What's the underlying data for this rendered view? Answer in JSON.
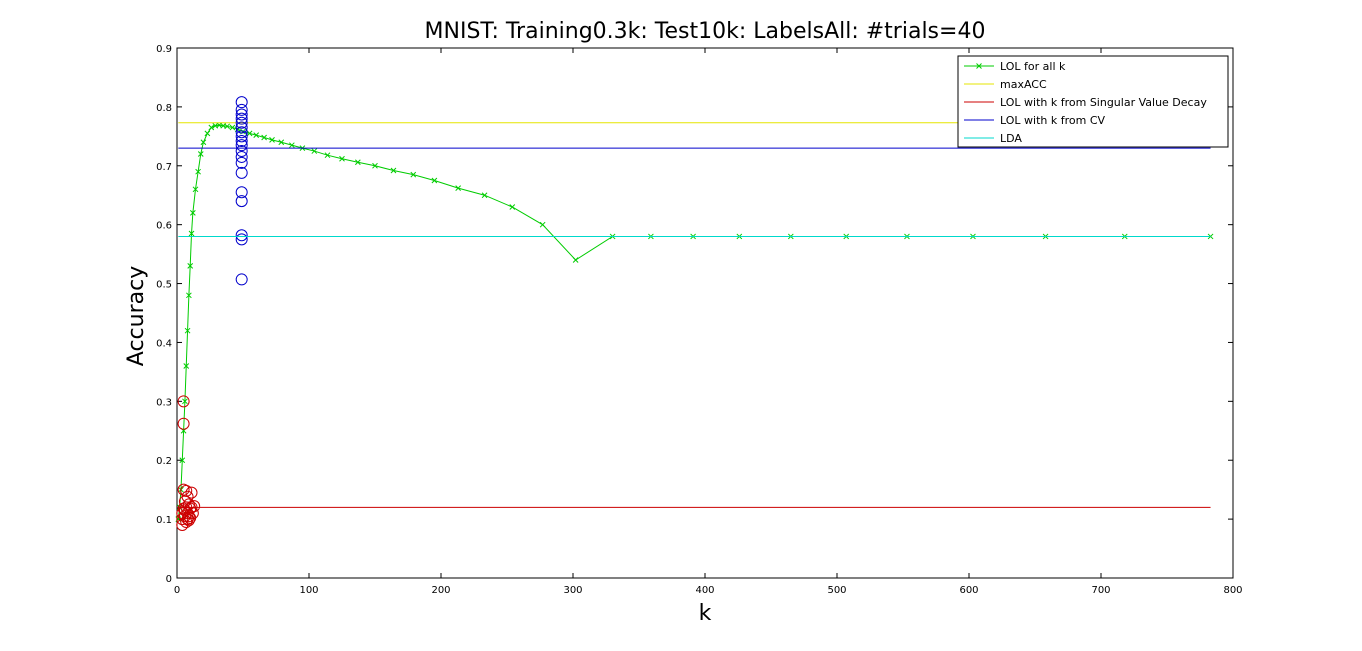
{
  "chart_data": {
    "type": "line",
    "title": "MNIST: Training0.3k: Test10k: LabelsAll: #trials=40",
    "xlabel": "k",
    "ylabel": "Accuracy",
    "xlim": [
      0,
      800
    ],
    "ylim": [
      0,
      0.9
    ],
    "xticks": [
      0,
      100,
      200,
      300,
      400,
      500,
      600,
      700,
      800
    ],
    "yticks": [
      0,
      0.1,
      0.2,
      0.3,
      0.4,
      0.5,
      0.6,
      0.7,
      0.8,
      0.9
    ],
    "legend_position": "top-right",
    "colors": {
      "lol_all_k": "#00cc00",
      "max_acc": "#e6e600",
      "lol_svd": "#cc0000",
      "lol_cv": "#0000cc",
      "lda": "#00d9cc"
    },
    "series": [
      {
        "name": "LOL for all k",
        "style": "line-x",
        "x": [
          1,
          2,
          3,
          4,
          5,
          6,
          7,
          8,
          9,
          10,
          11,
          12,
          14,
          16,
          18,
          20,
          23,
          26,
          29,
          32,
          35,
          38,
          42,
          46,
          50,
          55,
          60,
          66,
          72,
          79,
          87,
          95,
          104,
          114,
          125,
          137,
          150,
          164,
          179,
          195,
          213,
          233,
          254,
          277,
          302,
          330,
          359,
          391,
          426,
          465,
          507,
          553,
          603,
          658,
          718,
          783
        ],
        "y": [
          0.1,
          0.12,
          0.15,
          0.2,
          0.25,
          0.3,
          0.36,
          0.42,
          0.48,
          0.53,
          0.585,
          0.62,
          0.66,
          0.69,
          0.72,
          0.74,
          0.755,
          0.765,
          0.768,
          0.769,
          0.768,
          0.767,
          0.765,
          0.762,
          0.758,
          0.755,
          0.752,
          0.748,
          0.744,
          0.74,
          0.735,
          0.73,
          0.725,
          0.718,
          0.712,
          0.706,
          0.7,
          0.692,
          0.685,
          0.675,
          0.662,
          0.65,
          0.63,
          0.6,
          0.54,
          0.58,
          0.58,
          0.58,
          0.58,
          0.58,
          0.58,
          0.58,
          0.58,
          0.58,
          0.58,
          0.58
        ]
      },
      {
        "name": "maxACC",
        "style": "hline",
        "y": 0.773,
        "x_range": [
          1,
          783
        ]
      },
      {
        "name": "LOL with k from Singular Value Decay",
        "style": "hline-with-circles",
        "y": 0.12,
        "x_range": [
          1,
          783
        ],
        "circles": [
          {
            "x": 5,
            "y": 0.3
          },
          {
            "x": 5,
            "y": 0.262
          },
          {
            "x": 5,
            "y": 0.15
          },
          {
            "x": 5,
            "y": 0.118
          },
          {
            "x": 4,
            "y": 0.11
          },
          {
            "x": 4,
            "y": 0.1
          },
          {
            "x": 4,
            "y": 0.09
          },
          {
            "x": 6,
            "y": 0.13
          },
          {
            "x": 6,
            "y": 0.105
          },
          {
            "x": 7,
            "y": 0.148
          },
          {
            "x": 7,
            "y": 0.12
          },
          {
            "x": 7,
            "y": 0.095
          },
          {
            "x": 8,
            "y": 0.138
          },
          {
            "x": 8,
            "y": 0.11
          },
          {
            "x": 8,
            "y": 0.1
          },
          {
            "x": 9,
            "y": 0.125
          },
          {
            "x": 9,
            "y": 0.105
          },
          {
            "x": 10,
            "y": 0.118
          },
          {
            "x": 10,
            "y": 0.102
          },
          {
            "x": 11,
            "y": 0.145
          },
          {
            "x": 11,
            "y": 0.12
          },
          {
            "x": 12,
            "y": 0.11
          },
          {
            "x": 13,
            "y": 0.122
          },
          {
            "x": 6,
            "y": 0.115
          },
          {
            "x": 9,
            "y": 0.098
          }
        ]
      },
      {
        "name": "LOL with k from CV",
        "style": "hline-with-circles",
        "y": 0.73,
        "x_range": [
          1,
          783
        ],
        "circles": [
          {
            "x": 49,
            "y": 0.808
          },
          {
            "x": 49,
            "y": 0.795
          },
          {
            "x": 49,
            "y": 0.787
          },
          {
            "x": 49,
            "y": 0.78
          },
          {
            "x": 49,
            "y": 0.773
          },
          {
            "x": 49,
            "y": 0.765
          },
          {
            "x": 49,
            "y": 0.757
          },
          {
            "x": 49,
            "y": 0.75
          },
          {
            "x": 49,
            "y": 0.742
          },
          {
            "x": 49,
            "y": 0.735
          },
          {
            "x": 49,
            "y": 0.725
          },
          {
            "x": 49,
            "y": 0.715
          },
          {
            "x": 49,
            "y": 0.705
          },
          {
            "x": 49,
            "y": 0.688
          },
          {
            "x": 49,
            "y": 0.655
          },
          {
            "x": 49,
            "y": 0.64
          },
          {
            "x": 49,
            "y": 0.582
          },
          {
            "x": 49,
            "y": 0.575
          },
          {
            "x": 49,
            "y": 0.507
          }
        ]
      },
      {
        "name": "LDA",
        "style": "hline",
        "y": 0.58,
        "x_range": [
          1,
          783
        ]
      }
    ]
  }
}
